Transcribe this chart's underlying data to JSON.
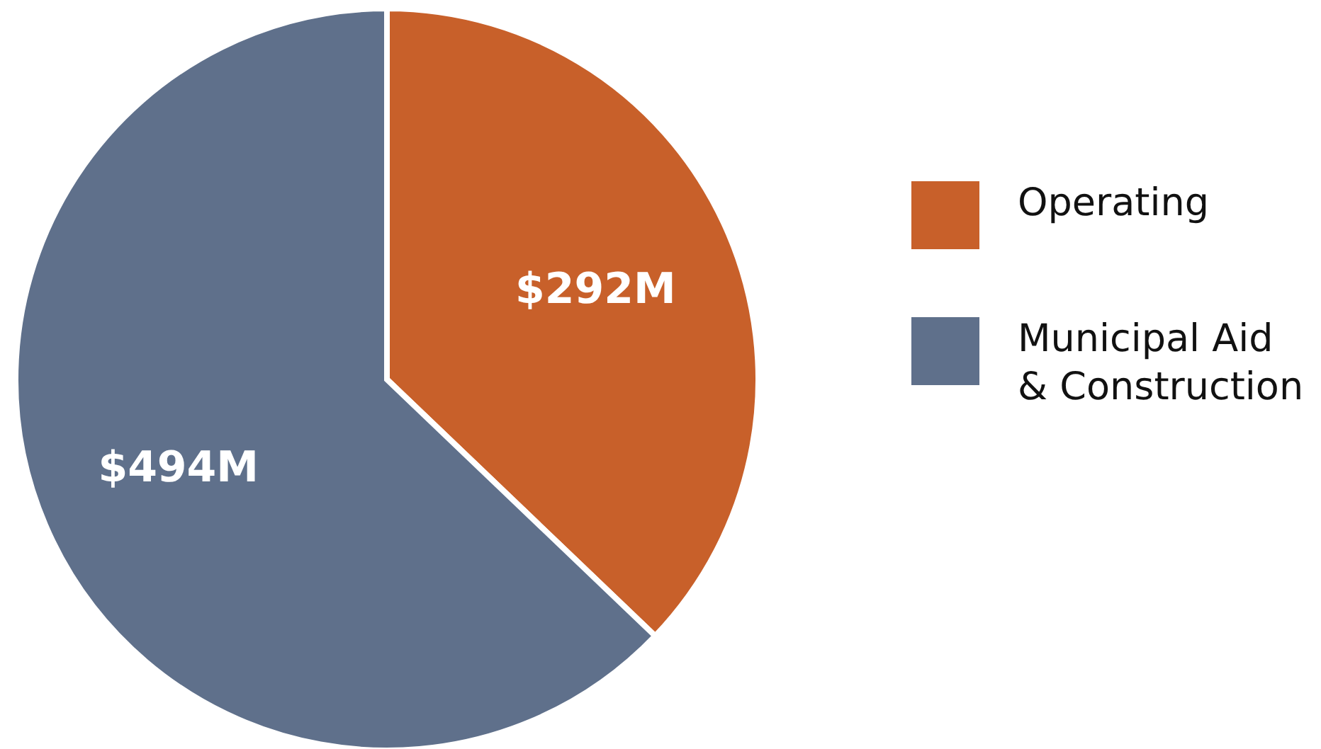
{
  "chart_data": {
    "type": "pie",
    "categories": [
      "Operating",
      "Municipal Aid & Construction"
    ],
    "values": [
      292,
      494
    ],
    "colors": [
      "#c8602a",
      "#5f708b"
    ],
    "value_labels": [
      "$292M",
      "$494M"
    ],
    "legend": "right"
  }
}
